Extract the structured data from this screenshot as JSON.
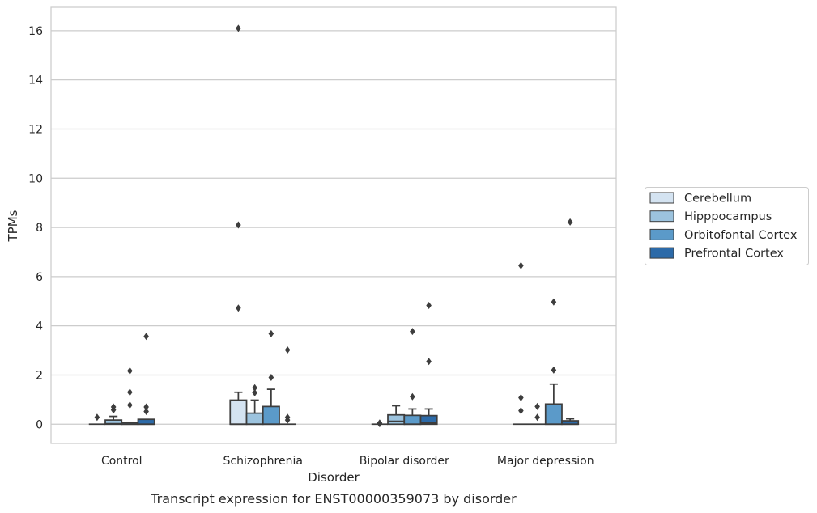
{
  "caption": "Transcript expression for ENST00000359073 by disorder",
  "chart_data": {
    "type": "box",
    "xlabel": "Disorder",
    "ylabel": "TPMs",
    "ylim": [
      -0.78,
      16.95
    ],
    "yticks": [
      0,
      2,
      4,
      6,
      8,
      10,
      12,
      14,
      16
    ],
    "categories": [
      "Control",
      "Schizophrenia",
      "Bipolar disorder",
      "Major depression"
    ],
    "grid": "horizontal",
    "legend_position": "right",
    "series": [
      {
        "name": "Cerebellum",
        "color": "#d4e3f1",
        "boxes": [
          {
            "q1": 0,
            "median": 0,
            "q3": 0,
            "whisker_low": 0,
            "whisker_high": 0,
            "outliers": [
              0.28
            ]
          },
          {
            "q1": 0,
            "median": 0,
            "q3": 0.98,
            "whisker_low": 0,
            "whisker_high": 1.3,
            "outliers": [
              4.72,
              8.1,
              16.1
            ]
          },
          {
            "q1": 0,
            "median": 0,
            "q3": 0,
            "whisker_low": 0,
            "whisker_high": 0,
            "outliers": [
              0.02,
              0.05
            ]
          },
          {
            "q1": 0,
            "median": 0,
            "q3": 0,
            "whisker_low": 0,
            "whisker_high": 0,
            "outliers": [
              0.55,
              1.08,
              6.45
            ]
          }
        ]
      },
      {
        "name": "Hipppocampus",
        "color": "#9cc3de",
        "boxes": [
          {
            "q1": 0,
            "median": 0.02,
            "q3": 0.17,
            "whisker_low": 0,
            "whisker_high": 0.32,
            "outliers": [
              0.58,
              0.7
            ]
          },
          {
            "q1": 0,
            "median": 0,
            "q3": 0.45,
            "whisker_low": 0,
            "whisker_high": 0.98,
            "outliers": [
              1.28,
              1.48
            ]
          },
          {
            "q1": 0,
            "median": 0.12,
            "q3": 0.38,
            "whisker_low": 0,
            "whisker_high": 0.75,
            "outliers": []
          },
          {
            "q1": 0,
            "median": 0,
            "q3": 0,
            "whisker_low": 0,
            "whisker_high": 0,
            "outliers": [
              0.28,
              0.72
            ]
          }
        ]
      },
      {
        "name": "Orbitofontal Cortex",
        "color": "#5b9ac9",
        "boxes": [
          {
            "q1": 0,
            "median": 0,
            "q3": 0.06,
            "whisker_low": 0,
            "whisker_high": 0.08,
            "outliers": [
              0.78,
              1.3,
              2.17
            ]
          },
          {
            "q1": 0,
            "median": 0,
            "q3": 0.72,
            "whisker_low": 0,
            "whisker_high": 1.42,
            "outliers": [
              1.9,
              3.68
            ]
          },
          {
            "q1": 0,
            "median": 0,
            "q3": 0.36,
            "whisker_low": 0,
            "whisker_high": 0.62,
            "outliers": [
              1.12,
              3.77
            ]
          },
          {
            "q1": 0,
            "median": 0,
            "q3": 0.82,
            "whisker_low": 0,
            "whisker_high": 1.63,
            "outliers": [
              2.2,
              4.97
            ]
          }
        ]
      },
      {
        "name": "Prefrontal Cortex",
        "color": "#2c6aa8",
        "boxes": [
          {
            "q1": 0,
            "median": 0,
            "q3": 0.2,
            "whisker_low": 0,
            "whisker_high": 0.2,
            "outliers": [
              0.52,
              0.7,
              3.57
            ]
          },
          {
            "q1": 0,
            "median": 0,
            "q3": 0,
            "whisker_low": 0,
            "whisker_high": 0,
            "outliers": [
              0.17,
              0.28,
              3.02
            ]
          },
          {
            "q1": 0,
            "median": 0.05,
            "q3": 0.35,
            "whisker_low": 0,
            "whisker_high": 0.62,
            "outliers": [
              2.55,
              4.83
            ]
          },
          {
            "q1": 0,
            "median": 0,
            "q3": 0.14,
            "whisker_low": 0,
            "whisker_high": 0.22,
            "outliers": [
              8.22
            ]
          }
        ]
      }
    ]
  }
}
